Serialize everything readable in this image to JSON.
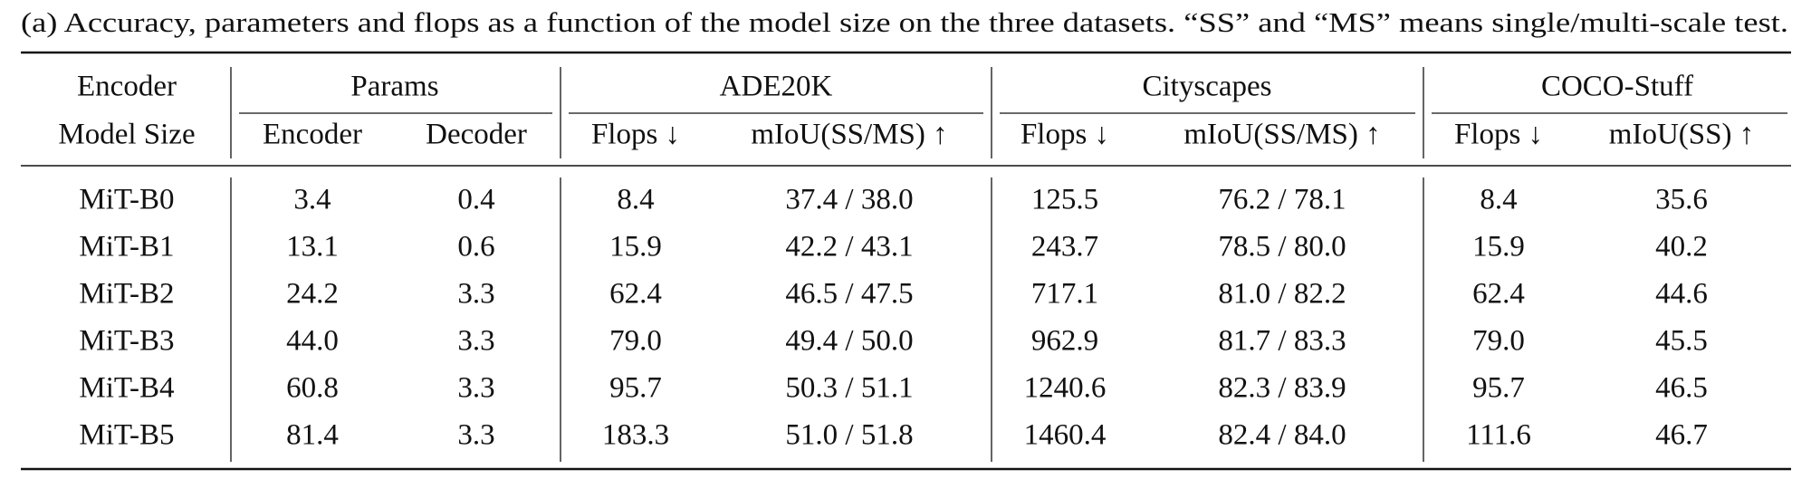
{
  "caption": "(a) Accuracy, parameters and flops as a function of the model size on the three datasets. “SS” and “MS” means single/multi-scale test.",
  "table": {
    "groups": [
      "Encoder",
      "Params",
      "ADE20K",
      "Cityscapes",
      "COCO-Stuff"
    ],
    "columns": [
      "Model Size",
      "Encoder",
      "Decoder",
      "Flops ↓",
      "mIoU(SS/MS) ↑",
      "Flops ↓",
      "mIoU(SS/MS) ↑",
      "Flops ↓",
      "mIoU(SS) ↑"
    ],
    "rows": [
      [
        "MiT-B0",
        "3.4",
        "0.4",
        "8.4",
        "37.4 / 38.0",
        "125.5",
        "76.2 / 78.1",
        "8.4",
        "35.6"
      ],
      [
        "MiT-B1",
        "13.1",
        "0.6",
        "15.9",
        "42.2 / 43.1",
        "243.7",
        "78.5 / 80.0",
        "15.9",
        "40.2"
      ],
      [
        "MiT-B2",
        "24.2",
        "3.3",
        "62.4",
        "46.5 / 47.5",
        "717.1",
        "81.0 / 82.2",
        "62.4",
        "44.6"
      ],
      [
        "MiT-B3",
        "44.0",
        "3.3",
        "79.0",
        "49.4 / 50.0",
        "962.9",
        "81.7 / 83.3",
        "79.0",
        "45.5"
      ],
      [
        "MiT-B4",
        "60.8",
        "3.3",
        "95.7",
        "50.3 / 51.1",
        "1240.6",
        "82.3 / 83.9",
        "95.7",
        "46.5"
      ],
      [
        "MiT-B5",
        "81.4",
        "3.3",
        "183.3",
        "51.0 / 51.8",
        "1460.4",
        "82.4 / 84.0",
        "111.6",
        "46.7"
      ]
    ]
  }
}
